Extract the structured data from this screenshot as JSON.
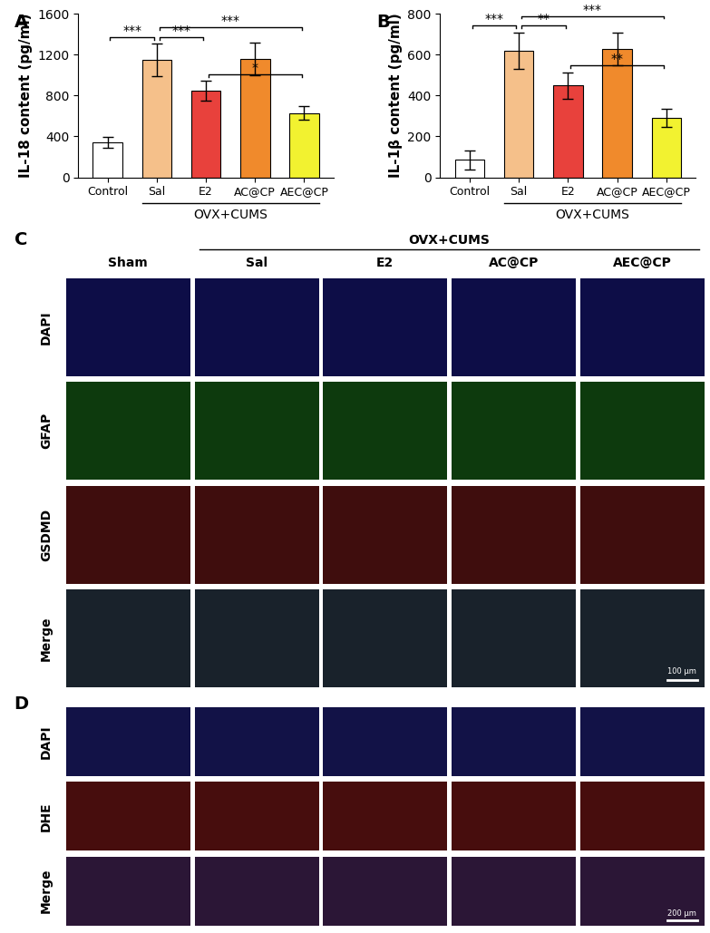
{
  "chart_data": [
    {
      "type": "bar",
      "panel": "A",
      "y_label": "IL-18 content (pg/ml)",
      "categories": [
        "Control",
        "Sal",
        "E2",
        "AC@CP",
        "AEC@CP"
      ],
      "values": [
        340,
        1150,
        850,
        1160,
        630
      ],
      "errors": [
        55,
        160,
        95,
        160,
        65
      ],
      "colors": [
        "#ffffff",
        "#f5c08a",
        "#e8413c",
        "#f08a2c",
        "#f2f230"
      ],
      "ylim": [
        0,
        1600
      ],
      "yticks": [
        0,
        400,
        800,
        1200,
        1600
      ],
      "group_label": "OVX+CUMS",
      "group_categories": [
        "Sal",
        "E2",
        "AC@CP",
        "AEC@CP"
      ],
      "significance": [
        {
          "from": "Control",
          "to": "Sal",
          "label": "***"
        },
        {
          "from": "Sal",
          "to": "E2",
          "label": "***"
        },
        {
          "from": "E2",
          "to": "AEC@CP",
          "label": "*"
        },
        {
          "from": "Sal",
          "to": "AEC@CP",
          "label": "***"
        }
      ]
    },
    {
      "type": "bar",
      "panel": "B",
      "y_label": "IL-1β content (pg/ml)",
      "categories": [
        "Control",
        "Sal",
        "E2",
        "AC@CP",
        "AEC@CP"
      ],
      "values": [
        85,
        620,
        450,
        630,
        290
      ],
      "errors": [
        45,
        90,
        65,
        80,
        45
      ],
      "colors": [
        "#ffffff",
        "#f5c08a",
        "#e8413c",
        "#f08a2c",
        "#f2f230"
      ],
      "ylim": [
        0,
        800
      ],
      "yticks": [
        0,
        200,
        400,
        600,
        800
      ],
      "group_label": "OVX+CUMS",
      "group_categories": [
        "Sal",
        "E2",
        "AC@CP",
        "AEC@CP"
      ],
      "significance": [
        {
          "from": "Control",
          "to": "Sal",
          "label": "***"
        },
        {
          "from": "Sal",
          "to": "E2",
          "label": "**"
        },
        {
          "from": "E2",
          "to": "AEC@CP",
          "label": "**"
        },
        {
          "from": "Sal",
          "to": "AEC@CP",
          "label": "***"
        }
      ]
    }
  ],
  "image_panels": [
    {
      "panel": "C",
      "columns": [
        "Sham",
        "Sal",
        "E2",
        "AC@CP",
        "AEC@CP"
      ],
      "group_label": "OVX+CUMS",
      "group_columns": [
        "Sal",
        "E2",
        "AC@CP",
        "AEC@CP"
      ],
      "rows": [
        {
          "label": "DAPI",
          "color": "#3030ff"
        },
        {
          "label": "GFAP",
          "color": "#30d030"
        },
        {
          "label": "GSDMD",
          "color": "#e03030"
        },
        {
          "label": "Merge",
          "color": "#5a7a9a"
        }
      ],
      "scale_bar": "100 μm"
    },
    {
      "panel": "D",
      "rows": [
        {
          "label": "DAPI",
          "color": "#4040ff"
        },
        {
          "label": "DHE",
          "color": "#ff3030"
        },
        {
          "label": "Merge",
          "color": "#9a50c0"
        }
      ],
      "scale_bar": "200 μm"
    }
  ]
}
